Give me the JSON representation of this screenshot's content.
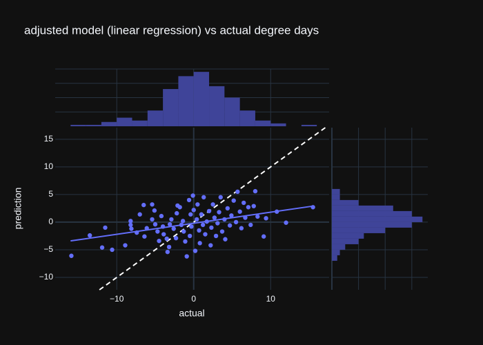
{
  "chart_data": [
    {
      "type": "scatter",
      "title": "adjusted model (linear regression) vs actual degree days",
      "x_label": "actual",
      "y_label": "prediction",
      "color": "#636efa",
      "grid": true,
      "xlim": [
        -18,
        17.6
      ],
      "ylim": [
        -12.25,
        17.1
      ],
      "xticks": [
        {
          "value": -10,
          "label": "−10"
        },
        0,
        10
      ],
      "yticks": [
        {
          "value": -10,
          "label": "−10"
        },
        {
          "value": -5,
          "label": "−5"
        },
        0,
        5,
        10,
        15
      ],
      "x": [
        -15.9,
        -13.5,
        -11.5,
        -11.9,
        -10.6,
        -8.9,
        -8.2,
        -8.2,
        -8.1,
        -7.4,
        -7,
        -6.5,
        -6.4,
        -6.1,
        -5.4,
        -5.4,
        -5.1,
        -5,
        -4.7,
        -4.5,
        -4.2,
        -4,
        -3.9,
        -3.5,
        -3.4,
        -3.2,
        -3.1,
        -2.9,
        -2.6,
        -2.3,
        -2.2,
        -2.1,
        -1.8,
        -1.6,
        -1.4,
        -1.3,
        -1.1,
        -0.9,
        -0.6,
        -0.5,
        -0.4,
        -0.3,
        -0.1,
        0,
        0.2,
        0.4,
        0.5,
        0.7,
        0.8,
        1,
        1.2,
        1.3,
        1.5,
        1.7,
        2,
        2.2,
        2.3,
        2.5,
        2.7,
        2.9,
        3.1,
        3.3,
        3.5,
        3.7,
        4,
        4.1,
        4.4,
        4.7,
        4.9,
        5.2,
        5.5,
        5.7,
        6,
        6.2,
        6.5,
        6.7,
        7.1,
        7.4,
        7.8,
        8,
        8.3,
        9.1,
        9.4,
        10.8,
        12,
        15.5
      ],
      "y": [
        -6.1,
        -2.4,
        -1,
        -4.6,
        -5,
        -4.2,
        0.2,
        -0.5,
        -1.2,
        -1.9,
        1.4,
        3.1,
        -2.6,
        -1.1,
        3.2,
        0.5,
        2.1,
        -0.4,
        -1.7,
        -3.4,
        1.1,
        -0.8,
        -2.2,
        -3,
        -5.4,
        -4.5,
        -0.4,
        0.5,
        -1.2,
        -2.9,
        1.6,
        3,
        2.7,
        -0.5,
        0.2,
        -1.7,
        -3.5,
        -6.2,
        4,
        -2.5,
        1.4,
        -0.8,
        4.8,
        2.2,
        -5.2,
        0.5,
        3.2,
        -1.5,
        -3.8,
        1.4,
        -0.5,
        4.5,
        -2.2,
        0.1,
        2,
        -4.2,
        -1,
        3.2,
        0.8,
        -2.5,
        -0.2,
        1.8,
        4.5,
        -1.7,
        0.5,
        -3.1,
        2.5,
        -0.6,
        1.2,
        3.9,
        0,
        5.5,
        1.9,
        -1.1,
        3.5,
        0.8,
        2.7,
        -0.5,
        2.9,
        5.6,
        1,
        -2.6,
        0.7,
        1.9,
        -0.1,
        2.7
      ],
      "trendline": {
        "x": [
          -16,
          15.5
        ],
        "y": [
          -3.4,
          2.9
        ]
      }
    },
    {
      "type": "histogram",
      "orientation": "v",
      "color": "#3f4499",
      "bins": [
        -16,
        -14,
        -12,
        -10,
        -8,
        -6,
        -4,
        -2,
        0,
        2,
        4,
        6,
        8,
        10,
        12,
        14,
        16
      ],
      "values": [
        1,
        1,
        3,
        6,
        4,
        11,
        26,
        35,
        38,
        28,
        20,
        11,
        4,
        2,
        0,
        1
      ],
      "ylim": [
        0,
        40
      ],
      "yticks": [
        10,
        20,
        30,
        40
      ],
      "grid": true
    },
    {
      "type": "histogram",
      "orientation": "h",
      "color": "#3f4499",
      "bins": [
        -7,
        -6,
        -5,
        -4,
        -3,
        -2,
        -1,
        0,
        1,
        2,
        3,
        4,
        5,
        6
      ],
      "values": [
        2,
        3,
        5,
        10,
        12,
        20,
        30,
        34,
        30,
        23,
        10,
        3,
        3
      ],
      "xlim": [
        0,
        36
      ],
      "xticks": [
        10,
        20,
        30
      ],
      "grid": true
    }
  ]
}
